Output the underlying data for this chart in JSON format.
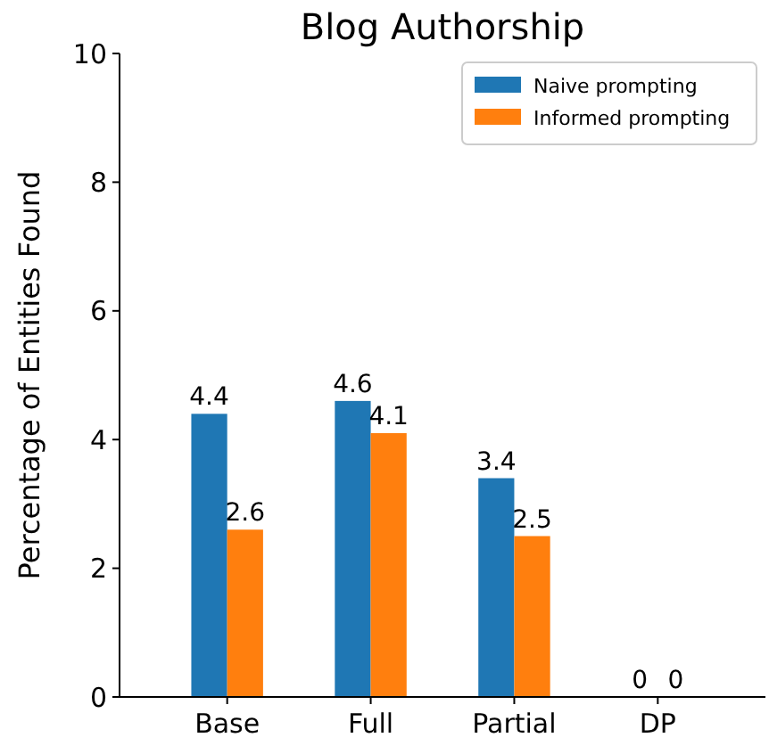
{
  "chart_data": {
    "type": "bar",
    "title": "Blog Authorship",
    "ylabel": "Percentage of Entities Found",
    "categories": [
      "Base",
      "Full",
      "Partial",
      "DP"
    ],
    "series": [
      {
        "name": "Naive prompting",
        "color": "#1f77b4",
        "values": [
          4.4,
          4.6,
          3.4,
          0
        ]
      },
      {
        "name": "Informed prompting",
        "color": "#ff7f0e",
        "values": [
          2.6,
          4.1,
          2.5,
          0
        ]
      }
    ],
    "ylim": [
      0,
      10
    ],
    "yticks": [
      0,
      2,
      4,
      6,
      8,
      10
    ],
    "data_labels": true,
    "legend": "top right",
    "grid": false
  }
}
